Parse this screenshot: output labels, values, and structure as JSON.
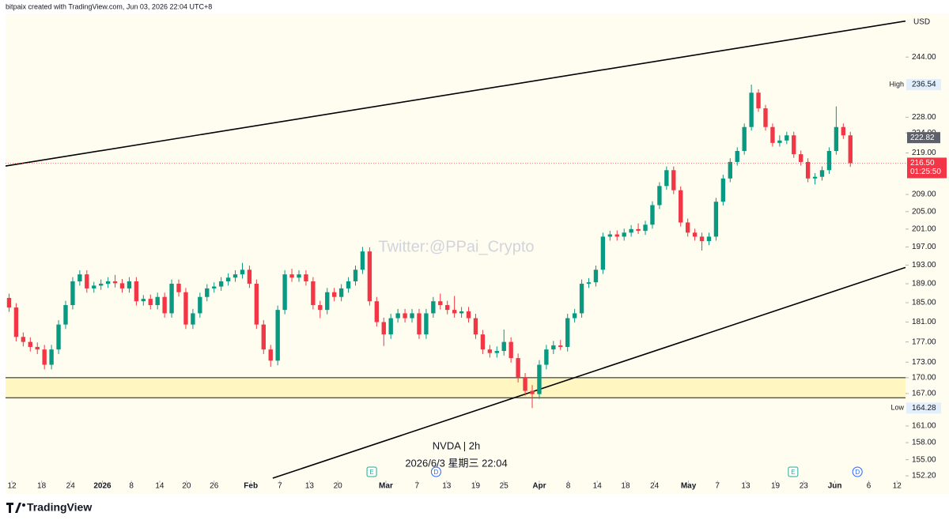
{
  "header": "bitpaix created with TradingView.com, Jun 03, 2026 22:04 UTC+8",
  "brand": "TradingView",
  "chart_data": {
    "type": "candlestick",
    "title": "NVDA | 2h",
    "subtitle": "2026/6/3 星期三 22:04",
    "watermark": "Twitter:@PPai_Crypto",
    "currency": "USD",
    "up_color": "#089981",
    "down_color": "#f23645",
    "log_scale": true,
    "grid": false,
    "ylim": [
      151.4,
      256.3
    ],
    "yticks": [
      {
        "value": 244,
        "label": "244.00"
      },
      {
        "value": 228,
        "label": "228.00"
      },
      {
        "value": 224,
        "label": "224.00"
      },
      {
        "value": 219,
        "label": "219.00"
      },
      {
        "value": 209,
        "label": "209.00"
      },
      {
        "value": 205,
        "label": "205.00"
      },
      {
        "value": 201,
        "label": "201.00"
      },
      {
        "value": 197,
        "label": "197.00"
      },
      {
        "value": 193,
        "label": "193.00"
      },
      {
        "value": 189,
        "label": "189.00"
      },
      {
        "value": 185,
        "label": "185.00"
      },
      {
        "value": 181,
        "label": "181.00"
      },
      {
        "value": 177,
        "label": "177.00"
      },
      {
        "value": 173,
        "label": "173.00"
      },
      {
        "value": 170,
        "label": "170.00"
      },
      {
        "value": 167,
        "label": "167.00"
      },
      {
        "value": 161,
        "label": "161.00"
      },
      {
        "value": 158,
        "label": "158.00"
      },
      {
        "value": 155,
        "label": "155.00"
      },
      {
        "value": 152.2,
        "label": "152.20"
      }
    ],
    "xlim": [
      0,
      127.3
    ],
    "xticks": [
      {
        "value": 0.9,
        "label": "12"
      },
      {
        "value": 5.1,
        "label": "18"
      },
      {
        "value": 9.2,
        "label": "24"
      },
      {
        "value": 13.7,
        "label": "2026"
      },
      {
        "value": 17.8,
        "label": "8"
      },
      {
        "value": 21.8,
        "label": "14"
      },
      {
        "value": 25.6,
        "label": "20"
      },
      {
        "value": 29.5,
        "label": "26"
      },
      {
        "value": 34.7,
        "label": "Feb"
      },
      {
        "value": 38.8,
        "label": "7"
      },
      {
        "value": 43.0,
        "label": "13"
      },
      {
        "value": 47.0,
        "label": "20"
      },
      {
        "value": 53.8,
        "label": "Mar"
      },
      {
        "value": 58.2,
        "label": "7"
      },
      {
        "value": 62.4,
        "label": "13"
      },
      {
        "value": 66.5,
        "label": "19"
      },
      {
        "value": 70.5,
        "label": "25"
      },
      {
        "value": 75.5,
        "label": "Apr"
      },
      {
        "value": 79.6,
        "label": "8"
      },
      {
        "value": 83.7,
        "label": "14"
      },
      {
        "value": 87.7,
        "label": "18"
      },
      {
        "value": 91.8,
        "label": "24"
      },
      {
        "value": 96.6,
        "label": "May"
      },
      {
        "value": 100.7,
        "label": "7"
      },
      {
        "value": 104.7,
        "label": "13"
      },
      {
        "value": 108.9,
        "label": "19"
      },
      {
        "value": 112.9,
        "label": "23"
      },
      {
        "value": 117.3,
        "label": "Jun"
      },
      {
        "value": 122.1,
        "label": "6"
      },
      {
        "value": 126.1,
        "label": "12"
      }
    ],
    "ohlc": [
      [
        186,
        186.9,
        183.1,
        184
      ],
      [
        184,
        184.9,
        177.1,
        178
      ],
      [
        178,
        178.9,
        176.1,
        177
      ],
      [
        177,
        177.9,
        175.1,
        176
      ],
      [
        176,
        176.9,
        174.6,
        175.5
      ],
      [
        175.5,
        176.4,
        171.6,
        172.5
      ],
      [
        172.5,
        176.4,
        171.6,
        175.5
      ],
      [
        175.5,
        181.4,
        174.6,
        180.5
      ],
      [
        180.5,
        185.4,
        179.6,
        184.5
      ],
      [
        184.5,
        190.4,
        183.6,
        189.5
      ],
      [
        189.5,
        191.9,
        188.6,
        191
      ],
      [
        191,
        191.9,
        187.1,
        188
      ],
      [
        188,
        189.4,
        187.1,
        188.6
      ],
      [
        188.6,
        189.9,
        187.7,
        189
      ],
      [
        189,
        190.4,
        188.1,
        189.5
      ],
      [
        189.5,
        190.9,
        188.2,
        189.1
      ],
      [
        189.1,
        190,
        187.1,
        188
      ],
      [
        188,
        190.4,
        187.1,
        189.5
      ],
      [
        189.5,
        190.4,
        184.4,
        185.3
      ],
      [
        185.3,
        186.6,
        184.4,
        185.8
      ],
      [
        185.8,
        186.7,
        183.6,
        184.5
      ],
      [
        184.5,
        187.1,
        183.6,
        186.2
      ],
      [
        186.2,
        187.1,
        181.9,
        182.8
      ],
      [
        182.8,
        189.9,
        181.9,
        189
      ],
      [
        189,
        189.9,
        186.3,
        187.2
      ],
      [
        187.2,
        188.1,
        179.6,
        180.5
      ],
      [
        180.5,
        183.7,
        179.6,
        182.8
      ],
      [
        182.8,
        187.1,
        181.9,
        186.2
      ],
      [
        186.2,
        188.9,
        185.3,
        188
      ],
      [
        188,
        189.3,
        187.1,
        188.4
      ],
      [
        188.4,
        190.4,
        187.5,
        189.5
      ],
      [
        189.5,
        191.2,
        188.6,
        190.3
      ],
      [
        190.3,
        191.9,
        189.4,
        191
      ],
      [
        191,
        193.5,
        190.1,
        192
      ],
      [
        192,
        192.9,
        188.1,
        189
      ],
      [
        189,
        189.9,
        179.6,
        180.5
      ],
      [
        180.5,
        181.4,
        174.6,
        175.5
      ],
      [
        175.5,
        176.4,
        172.1,
        173.3
      ],
      [
        173.3,
        184.4,
        172.4,
        183.5
      ],
      [
        183.5,
        191.9,
        182.6,
        191
      ],
      [
        191,
        192.2,
        189.4,
        190.3
      ],
      [
        190.3,
        191.9,
        189.4,
        191
      ],
      [
        191,
        191.9,
        188.6,
        189.5
      ],
      [
        189.5,
        190.4,
        183.6,
        184.5
      ],
      [
        184.5,
        185.4,
        181.8,
        183.5
      ],
      [
        183.5,
        188.1,
        182.6,
        187.2
      ],
      [
        187.2,
        188.1,
        185.3,
        186.2
      ],
      [
        186.2,
        188.9,
        185.3,
        188
      ],
      [
        188,
        190.4,
        187.1,
        189.5
      ],
      [
        189.5,
        192.9,
        188.6,
        192
      ],
      [
        192,
        197,
        191.1,
        196
      ],
      [
        196,
        196.9,
        184.4,
        185.3
      ],
      [
        185.3,
        186.2,
        180.1,
        181
      ],
      [
        181,
        181.9,
        176.2,
        178.5
      ],
      [
        178.5,
        182.7,
        177.6,
        181.8
      ],
      [
        181.8,
        183.7,
        180.9,
        182.8
      ],
      [
        182.8,
        183.7,
        180.9,
        181.8
      ],
      [
        181.8,
        183.7,
        180.9,
        182.8
      ],
      [
        182.8,
        183.7,
        177.6,
        178.5
      ],
      [
        178.5,
        183.7,
        177.6,
        182.8
      ],
      [
        182.8,
        186.2,
        181.9,
        185.3
      ],
      [
        185.3,
        186.9,
        183.6,
        184.5
      ],
      [
        184.5,
        185.4,
        182.6,
        183.5
      ],
      [
        183.5,
        186.4,
        181.9,
        182.8
      ],
      [
        182.8,
        184.1,
        181.9,
        183.2
      ],
      [
        183.2,
        184.1,
        180.9,
        181.8
      ],
      [
        181.8,
        182.7,
        177.6,
        178.5
      ],
      [
        178.5,
        179.4,
        174.6,
        175.5
      ],
      [
        175.5,
        176.4,
        173.9,
        174.8
      ],
      [
        174.8,
        176.1,
        173.9,
        175.2
      ],
      [
        175.2,
        179.5,
        174.3,
        177
      ],
      [
        177,
        177.9,
        172.9,
        173.8
      ],
      [
        173.8,
        174.7,
        169.1,
        170
      ],
      [
        170,
        170.9,
        166.6,
        167.5
      ],
      [
        167.5,
        168.6,
        164.28,
        166.9
      ],
      [
        166.9,
        173.4,
        166,
        172.5
      ],
      [
        172.5,
        176.4,
        171.6,
        175.5
      ],
      [
        175.5,
        177.2,
        174.6,
        176.3
      ],
      [
        176.3,
        177.4,
        175.4,
        176
      ],
      [
        176,
        182.7,
        175.1,
        181.8
      ],
      [
        181.8,
        183.7,
        180.9,
        182.8
      ],
      [
        182.8,
        189.9,
        181.9,
        189
      ],
      [
        189,
        190.2,
        188.1,
        189.3
      ],
      [
        189.3,
        192.9,
        188.4,
        192
      ],
      [
        192,
        200.2,
        191.1,
        199.3
      ],
      [
        199.3,
        200.6,
        198.4,
        199.8
      ],
      [
        199.8,
        200.7,
        198.4,
        199.3
      ],
      [
        199.3,
        201.1,
        198.4,
        200.2
      ],
      [
        200.2,
        201.9,
        199.3,
        201
      ],
      [
        201,
        202.3,
        199.9,
        200.6
      ],
      [
        200.6,
        202.9,
        199.7,
        202
      ],
      [
        202,
        207.4,
        201.1,
        206.5
      ],
      [
        206.5,
        211.9,
        205.6,
        211
      ],
      [
        211,
        215.7,
        210.1,
        214.8
      ],
      [
        214.8,
        215.7,
        209.1,
        210
      ],
      [
        210,
        210.9,
        201.6,
        202.5
      ],
      [
        202.5,
        203.4,
        199.3,
        200.2
      ],
      [
        200.2,
        201.1,
        198.4,
        199.3
      ],
      [
        199.3,
        200.2,
        196.2,
        198.3
      ],
      [
        198.3,
        200.2,
        197.4,
        199.3
      ],
      [
        199.3,
        208.2,
        198.4,
        207.3
      ],
      [
        207.3,
        213.7,
        206.4,
        212.8
      ],
      [
        212.8,
        217.7,
        211.9,
        216.8
      ],
      [
        216.8,
        220.4,
        215.9,
        219.5
      ],
      [
        219.5,
        226.4,
        218.6,
        225.5
      ],
      [
        225.5,
        236.54,
        224.6,
        234.4
      ],
      [
        234.4,
        235.3,
        229.4,
        230.3
      ],
      [
        230.3,
        231.2,
        224.6,
        225.5
      ],
      [
        225.5,
        226.4,
        220.6,
        221.5
      ],
      [
        221.5,
        223.4,
        220.6,
        222.1
      ],
      [
        222.1,
        224.3,
        221.2,
        223.4
      ],
      [
        223.4,
        224.3,
        217.8,
        218.7
      ],
      [
        218.7,
        219.6,
        215.9,
        216.8
      ],
      [
        216.8,
        217.7,
        211.9,
        212.8
      ],
      [
        212.8,
        214.1,
        211.4,
        213.2
      ],
      [
        213.2,
        215.7,
        212.3,
        214.8
      ],
      [
        214.8,
        220.4,
        213.9,
        219.5
      ],
      [
        219.5,
        230.8,
        218.6,
        225.5
      ],
      [
        225.5,
        226.4,
        222.5,
        223.4
      ],
      [
        223.4,
        224.3,
        215.6,
        216.5
      ]
    ],
    "price_labels": [
      {
        "label": "High",
        "value": 236.54
      },
      {
        "label": "Low",
        "value": 164.28
      }
    ],
    "indicator_price": 222.82,
    "last_price": {
      "value": 216.5,
      "label": "216.50"
    },
    "countdown": "01:25:50",
    "trendlines": [
      {
        "x": [
          0,
          127.3
        ],
        "y": [
          215.8,
          254.1
        ]
      },
      {
        "x": [
          37.8,
          127.3
        ],
        "y": [
          151.8,
          192.5
        ]
      }
    ],
    "zone": [
      166.2,
      170
    ],
    "events": [
      {
        "x": 51.8,
        "label": "E",
        "color": "#22ab94"
      },
      {
        "x": 60.9,
        "label": "D",
        "color": "#2962ff"
      },
      {
        "x": 111.4,
        "label": "E",
        "color": "#22ab94"
      },
      {
        "x": 120.5,
        "label": "D",
        "color": "#2962ff"
      }
    ]
  }
}
